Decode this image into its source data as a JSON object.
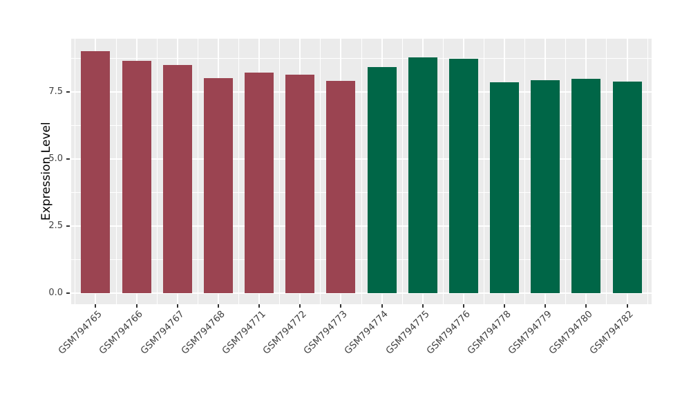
{
  "chart_data": {
    "type": "bar",
    "title": "",
    "xlabel": "",
    "ylabel": "Expression Level",
    "categories": [
      "GSM794765",
      "GSM794766",
      "GSM794767",
      "GSM794768",
      "GSM794771",
      "GSM794772",
      "GSM794773",
      "GSM794774",
      "GSM794775",
      "GSM794776",
      "GSM794778",
      "GSM794779",
      "GSM794780",
      "GSM794782"
    ],
    "values": [
      9.02,
      8.66,
      8.49,
      8.0,
      8.21,
      8.13,
      7.91,
      8.42,
      8.77,
      8.73,
      7.84,
      7.94,
      7.99,
      7.88
    ],
    "groups": [
      "group1",
      "group1",
      "group1",
      "group1",
      "group1",
      "group1",
      "group1",
      "group2",
      "group2",
      "group2",
      "group2",
      "group2",
      "group2",
      "group2"
    ],
    "group_colors": {
      "group1": "#9B4451",
      "group2": "#006647"
    },
    "yticks": {
      "values": [
        0,
        2.5,
        5,
        7.5
      ],
      "labels": [
        "0.0",
        "2.5",
        "5.0",
        "7.5"
      ]
    },
    "yminor": [
      1.25,
      3.75,
      6.25,
      8.75
    ],
    "ylim": [
      -0.41,
      9.47
    ],
    "grid": "white major and minor gridlines on gray panel",
    "legend": "none",
    "style": {
      "panel_bg": "#EBEBEB",
      "grid_color": "#FFFFFF",
      "tick_mark_color": "#333333",
      "axis_text_color": "#404040",
      "axis_title_color": "#000000",
      "figure_bg": "#FFFFFF"
    }
  }
}
